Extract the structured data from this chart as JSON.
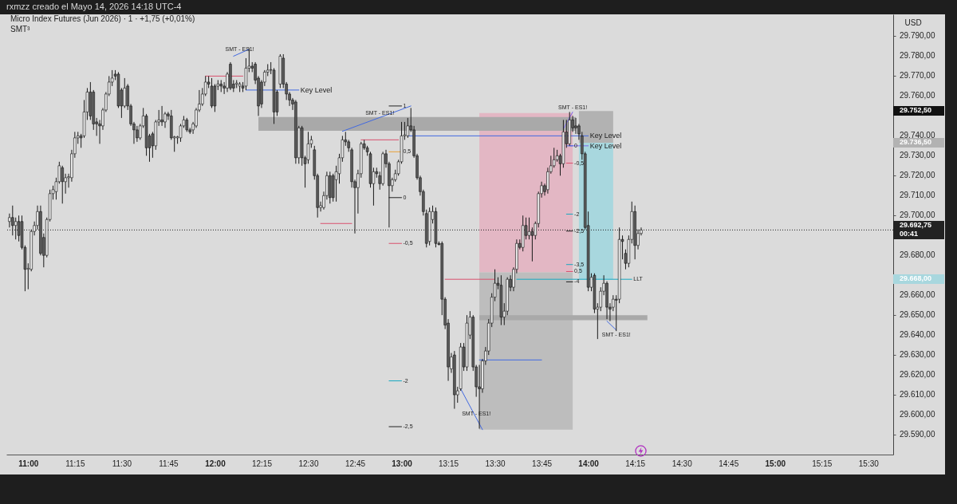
{
  "chart_data": {
    "type": "candlestick",
    "title": "rxmzz creado el Mayo 14, 2026 14:18 UTC-4",
    "subtitle": "Micro Index Futures (Jun 2026) · 1 · +1,75 (+0,01%)",
    "ylabel": "USD",
    "xlim": [
      "2026-05-14T10:53",
      "2026-05-14T15:38"
    ],
    "ylim": [
      29580,
      29801
    ],
    "xticks": [
      {
        "value": "2026-05-14T11:00",
        "label": "11:00"
      },
      {
        "value": "2026-05-14T11:15",
        "label": "11:15"
      },
      {
        "value": "2026-05-14T11:30",
        "label": "11:30"
      },
      {
        "value": "2026-05-14T11:45",
        "label": "11:45"
      },
      {
        "value": "2026-05-14T12:00",
        "label": "12:00"
      },
      {
        "value": "2026-05-14T12:15",
        "label": "12:15"
      },
      {
        "value": "2026-05-14T12:30",
        "label": "12:30"
      },
      {
        "value": "2026-05-14T12:45",
        "label": "12:45"
      },
      {
        "value": "2026-05-14T13:00",
        "label": "13:00"
      },
      {
        "value": "2026-05-14T13:15",
        "label": "13:15"
      },
      {
        "value": "2026-05-14T13:30",
        "label": "13:30"
      },
      {
        "value": "2026-05-14T13:45",
        "label": "13:45"
      },
      {
        "value": "2026-05-14T14:00",
        "label": "14:00"
      },
      {
        "value": "2026-05-14T14:15",
        "label": "14:15"
      },
      {
        "value": "2026-05-14T14:30",
        "label": "14:30"
      },
      {
        "value": "2026-05-14T14:45",
        "label": "14:45"
      },
      {
        "value": "2026-05-14T15:00",
        "label": "15:00"
      },
      {
        "value": "2026-05-14T15:15",
        "label": "15:15"
      },
      {
        "value": "2026-05-14T15:30",
        "label": "15:30"
      }
    ],
    "yticks": [
      {
        "value": 29590,
        "label": "29.590,00"
      },
      {
        "value": 29600,
        "label": "29.600,00"
      },
      {
        "value": 29610,
        "label": "29.610,00"
      },
      {
        "value": 29620,
        "label": "29.620,00"
      },
      {
        "value": 29630,
        "label": "29.630,00"
      },
      {
        "value": 29640,
        "label": "29.640,00"
      },
      {
        "value": 29650,
        "label": "29.650,00"
      },
      {
        "value": 29660,
        "label": "29.660,00"
      },
      {
        "value": 29668,
        "label": "29.668,00"
      },
      {
        "value": 29680,
        "label": "29.680,00"
      },
      {
        "value": 29700,
        "label": "29.700,00"
      },
      {
        "value": 29710,
        "label": "29.710,00"
      },
      {
        "value": 29720,
        "label": "29.720,00"
      },
      {
        "value": 29730,
        "label": "29.730,00"
      },
      {
        "value": 29736.5,
        "label": "29.736,50"
      },
      {
        "value": 29740,
        "label": "29.740,00"
      },
      {
        "value": 29752.5,
        "label": "29.752,50"
      },
      {
        "value": 29760,
        "label": "29.760,00"
      },
      {
        "value": 29770,
        "label": "29.770,00"
      },
      {
        "value": 29780,
        "label": "29.780,00"
      },
      {
        "value": 29790,
        "label": "29.790,00"
      }
    ],
    "x": [
      "2026-05-14T10:54",
      "2026-05-14T10:55",
      "2026-05-14T10:56",
      "2026-05-14T10:57",
      "2026-05-14T10:58",
      "2026-05-14T10:59",
      "2026-05-14T11:00",
      "2026-05-14T11:01",
      "2026-05-14T11:02",
      "2026-05-14T11:03",
      "2026-05-14T11:04",
      "2026-05-14T11:05",
      "2026-05-14T11:06",
      "2026-05-14T11:07",
      "2026-05-14T11:08",
      "2026-05-14T11:09",
      "2026-05-14T11:10",
      "2026-05-14T11:11",
      "2026-05-14T11:12",
      "2026-05-14T11:13",
      "2026-05-14T11:14",
      "2026-05-14T11:15",
      "2026-05-14T11:16",
      "2026-05-14T11:17",
      "2026-05-14T11:18",
      "2026-05-14T11:19",
      "2026-05-14T11:20",
      "2026-05-14T11:21",
      "2026-05-14T11:22",
      "2026-05-14T11:23",
      "2026-05-14T11:24",
      "2026-05-14T11:25",
      "2026-05-14T11:26",
      "2026-05-14T11:27",
      "2026-05-14T11:28",
      "2026-05-14T11:29",
      "2026-05-14T11:30",
      "2026-05-14T11:31",
      "2026-05-14T11:32",
      "2026-05-14T11:33",
      "2026-05-14T11:34",
      "2026-05-14T11:35",
      "2026-05-14T11:36",
      "2026-05-14T11:37",
      "2026-05-14T11:38",
      "2026-05-14T11:39",
      "2026-05-14T11:40",
      "2026-05-14T11:41",
      "2026-05-14T11:42",
      "2026-05-14T11:43",
      "2026-05-14T11:44",
      "2026-05-14T11:45",
      "2026-05-14T11:46",
      "2026-05-14T11:47",
      "2026-05-14T11:48",
      "2026-05-14T11:49",
      "2026-05-14T11:50",
      "2026-05-14T11:51",
      "2026-05-14T11:52",
      "2026-05-14T11:53",
      "2026-05-14T11:54",
      "2026-05-14T11:55",
      "2026-05-14T11:56",
      "2026-05-14T11:57",
      "2026-05-14T11:58",
      "2026-05-14T11:59",
      "2026-05-14T12:00",
      "2026-05-14T12:01",
      "2026-05-14T12:02",
      "2026-05-14T12:03",
      "2026-05-14T12:04",
      "2026-05-14T12:05",
      "2026-05-14T12:06",
      "2026-05-14T12:07",
      "2026-05-14T12:08",
      "2026-05-14T12:09",
      "2026-05-14T12:10",
      "2026-05-14T12:11",
      "2026-05-14T12:12",
      "2026-05-14T12:13",
      "2026-05-14T12:14",
      "2026-05-14T12:15",
      "2026-05-14T12:16",
      "2026-05-14T12:17",
      "2026-05-14T12:18",
      "2026-05-14T12:19",
      "2026-05-14T12:20",
      "2026-05-14T12:21",
      "2026-05-14T12:22",
      "2026-05-14T12:23",
      "2026-05-14T12:24",
      "2026-05-14T12:25",
      "2026-05-14T12:26",
      "2026-05-14T12:27",
      "2026-05-14T12:28",
      "2026-05-14T12:29",
      "2026-05-14T12:30",
      "2026-05-14T12:31",
      "2026-05-14T12:32",
      "2026-05-14T12:33",
      "2026-05-14T12:34",
      "2026-05-14T12:35",
      "2026-05-14T12:36",
      "2026-05-14T12:37",
      "2026-05-14T12:38",
      "2026-05-14T12:39",
      "2026-05-14T12:40",
      "2026-05-14T12:41",
      "2026-05-14T12:42",
      "2026-05-14T12:43",
      "2026-05-14T12:44",
      "2026-05-14T12:45",
      "2026-05-14T12:46",
      "2026-05-14T12:47",
      "2026-05-14T12:48",
      "2026-05-14T12:49",
      "2026-05-14T12:50",
      "2026-05-14T12:51",
      "2026-05-14T12:52",
      "2026-05-14T12:53",
      "2026-05-14T12:54",
      "2026-05-14T12:55",
      "2026-05-14T12:56",
      "2026-05-14T12:57",
      "2026-05-14T12:58",
      "2026-05-14T12:59",
      "2026-05-14T13:00",
      "2026-05-14T13:01",
      "2026-05-14T13:02",
      "2026-05-14T13:03",
      "2026-05-14T13:04",
      "2026-05-14T13:05",
      "2026-05-14T13:06",
      "2026-05-14T13:07",
      "2026-05-14T13:08",
      "2026-05-14T13:09",
      "2026-05-14T13:10",
      "2026-05-14T13:11",
      "2026-05-14T13:12",
      "2026-05-14T13:13",
      "2026-05-14T13:14",
      "2026-05-14T13:15",
      "2026-05-14T13:16",
      "2026-05-14T13:17",
      "2026-05-14T13:18",
      "2026-05-14T13:19",
      "2026-05-14T13:20",
      "2026-05-14T13:21",
      "2026-05-14T13:22",
      "2026-05-14T13:23",
      "2026-05-14T13:24",
      "2026-05-14T13:25",
      "2026-05-14T13:26",
      "2026-05-14T13:27",
      "2026-05-14T13:28",
      "2026-05-14T13:29",
      "2026-05-14T13:30",
      "2026-05-14T13:31",
      "2026-05-14T13:32",
      "2026-05-14T13:33",
      "2026-05-14T13:34",
      "2026-05-14T13:35",
      "2026-05-14T13:36",
      "2026-05-14T13:37",
      "2026-05-14T13:38",
      "2026-05-14T13:39",
      "2026-05-14T13:40",
      "2026-05-14T13:41",
      "2026-05-14T13:42",
      "2026-05-14T13:43",
      "2026-05-14T13:44",
      "2026-05-14T13:45",
      "2026-05-14T13:46",
      "2026-05-14T13:47",
      "2026-05-14T13:48",
      "2026-05-14T13:49",
      "2026-05-14T13:50",
      "2026-05-14T13:51",
      "2026-05-14T13:52",
      "2026-05-14T13:53",
      "2026-05-14T13:54",
      "2026-05-14T13:55",
      "2026-05-14T13:56",
      "2026-05-14T13:57",
      "2026-05-14T13:58",
      "2026-05-14T13:59",
      "2026-05-14T14:00",
      "2026-05-14T14:01",
      "2026-05-14T14:02",
      "2026-05-14T14:03",
      "2026-05-14T14:04",
      "2026-05-14T14:05",
      "2026-05-14T14:06",
      "2026-05-14T14:07",
      "2026-05-14T14:08",
      "2026-05-14T14:09",
      "2026-05-14T14:10",
      "2026-05-14T14:11",
      "2026-05-14T14:12",
      "2026-05-14T14:13",
      "2026-05-14T14:14",
      "2026-05-14T14:15",
      "2026-05-14T14:16",
      "2026-05-14T14:17"
    ],
    "ohlc": [
      [
        29697,
        29701,
        29694,
        29699
      ],
      [
        29699,
        29705,
        29690,
        29695
      ],
      [
        29695,
        29699,
        29688,
        29697
      ],
      [
        29697,
        29700,
        29687,
        29690
      ],
      [
        29697,
        29700,
        29683,
        29684
      ],
      [
        29684,
        29685,
        29662,
        29673
      ],
      [
        29673,
        29676,
        29663,
        29673.5
      ],
      [
        29673,
        29693,
        29672,
        29692
      ],
      [
        29692,
        29697,
        29690,
        29695
      ],
      [
        29695,
        29705,
        29693,
        29702
      ],
      [
        29702,
        29705,
        29680,
        29681
      ],
      [
        29689,
        29691,
        29674,
        29680
      ],
      [
        29680,
        29699,
        29679,
        29698
      ],
      [
        29698,
        29713,
        29697,
        29711
      ],
      [
        29711,
        29715,
        29708,
        29713
      ],
      [
        29712,
        29719,
        29708,
        29717
      ],
      [
        29717,
        29727,
        29716,
        29725
      ],
      [
        29724,
        29725,
        29706,
        29717
      ],
      [
        29717,
        29721,
        29711,
        29719
      ],
      [
        29719,
        29721,
        29714,
        29719.5
      ],
      [
        29719,
        29733,
        29717,
        29731
      ],
      [
        29731,
        29742,
        29729,
        29739
      ],
      [
        29739,
        29742,
        29736,
        29740
      ],
      [
        29740,
        29741,
        29734,
        29739
      ],
      [
        29740,
        29758,
        29739,
        29752
      ],
      [
        29752,
        29764,
        29748,
        29762
      ],
      [
        29762,
        29767,
        29748,
        29750
      ],
      [
        29762,
        29763,
        29743,
        29746
      ],
      [
        29747,
        29749,
        29740,
        29746
      ],
      [
        29746,
        29748,
        29736,
        29745
      ],
      [
        29745,
        29754,
        29743,
        29753
      ],
      [
        29753,
        29762,
        29752,
        29761
      ],
      [
        29761,
        29770,
        29760,
        29767
      ],
      [
        29767,
        29773,
        29765,
        29769
      ],
      [
        29771,
        29773,
        29768,
        29770
      ],
      [
        29771,
        29772,
        29754,
        29755
      ],
      [
        29763,
        29764,
        29749,
        29755
      ],
      [
        29755,
        29769,
        29754,
        29764
      ],
      [
        29765,
        29766,
        29753,
        29755
      ],
      [
        29755,
        29756,
        29745,
        29746
      ],
      [
        29746,
        29747,
        29736,
        29743
      ],
      [
        29743,
        29745,
        29737,
        29739
      ],
      [
        29739,
        29746,
        29738,
        29745
      ],
      [
        29745,
        29754,
        29744,
        29750
      ],
      [
        29750,
        29751,
        29730,
        29734
      ],
      [
        29740,
        29741,
        29727,
        29734
      ],
      [
        29741,
        29742,
        29729,
        29735
      ],
      [
        29735,
        29748,
        29733,
        29747
      ],
      [
        29747,
        29753,
        29745,
        29748
      ],
      [
        29748,
        29755,
        29745,
        29747
      ],
      [
        29747,
        29752,
        29744,
        29751
      ],
      [
        29751,
        29752,
        29748,
        29750
      ],
      [
        29750,
        29753,
        29738,
        29739
      ],
      [
        29739,
        29740,
        29732,
        29739.5
      ],
      [
        29739,
        29740,
        29736,
        29739.5
      ],
      [
        29739,
        29746,
        29737,
        29745
      ],
      [
        29745,
        29750,
        29744,
        29748
      ],
      [
        29748,
        29749,
        29742,
        29743
      ],
      [
        29743,
        29744,
        29741,
        29742
      ],
      [
        29743,
        29747,
        29741,
        29746
      ],
      [
        29745,
        29754,
        29744,
        29753
      ],
      [
        29753,
        29763,
        29752,
        29756
      ],
      [
        29756,
        29764,
        29755,
        29761
      ],
      [
        29761,
        29770,
        29760,
        29767
      ],
      [
        29767,
        29770,
        29764,
        29766
      ],
      [
        29765,
        29769,
        29754,
        29755
      ],
      [
        29765,
        29766,
        29752,
        29755
      ],
      [
        29765,
        29768,
        29763,
        29766
      ],
      [
        29766,
        29768,
        29762,
        29765
      ],
      [
        29765,
        29767,
        29761,
        29764
      ],
      [
        29764,
        29772,
        29762,
        29771
      ],
      [
        29776,
        29777,
        29763,
        29764
      ],
      [
        29766,
        29768,
        29762,
        29764
      ],
      [
        29766,
        29768,
        29764,
        29766.5
      ],
      [
        29765,
        29767,
        29762,
        29766
      ],
      [
        29765,
        29767,
        29762,
        29764
      ],
      [
        29765,
        29779,
        29763,
        29774
      ],
      [
        29774,
        29784,
        29772,
        29775
      ],
      [
        29775,
        29777,
        29772,
        29774
      ],
      [
        29776,
        29777,
        29766,
        29768
      ],
      [
        29769,
        29770,
        29750,
        29755
      ],
      [
        29767,
        29768,
        29754,
        29756
      ],
      [
        29767,
        29773,
        29765,
        29772
      ],
      [
        29772,
        29776,
        29770,
        29773
      ],
      [
        29773,
        29777,
        29771,
        29773.25
      ],
      [
        29773,
        29774,
        29746,
        29752
      ],
      [
        29762,
        29763,
        29750,
        29752
      ],
      [
        29766,
        29781,
        29764,
        29780
      ],
      [
        29779,
        29781,
        29764,
        29766
      ],
      [
        29766,
        29767,
        29758,
        29761
      ],
      [
        29761,
        29762,
        29755,
        29758
      ],
      [
        29758,
        29759,
        29753,
        29756
      ],
      [
        29757,
        29758,
        29726,
        29729
      ],
      [
        29729,
        29745,
        29726,
        29744
      ],
      [
        29744,
        29745,
        29725,
        29729
      ],
      [
        29729,
        29730,
        29714,
        29726
      ],
      [
        29728,
        29742,
        29726,
        29736
      ],
      [
        29736,
        29740,
        29734,
        29738
      ],
      [
        29733,
        29735,
        29718,
        29720
      ],
      [
        29720,
        29721,
        29699,
        29704
      ],
      [
        29704,
        29707,
        29702,
        29705
      ],
      [
        29704,
        29712,
        29703,
        29710
      ],
      [
        29710,
        29722,
        29708,
        29720
      ],
      [
        29720,
        29722,
        29706,
        29709
      ],
      [
        29720,
        29721,
        29707,
        29709
      ],
      [
        29718,
        29725,
        29707,
        29722
      ],
      [
        29721,
        29731,
        29716,
        29729
      ],
      [
        29729,
        29740,
        29727,
        29738
      ],
      [
        29738,
        29742,
        29735,
        29737
      ],
      [
        29737,
        29738,
        29732,
        29734
      ],
      [
        29733,
        29734,
        29714,
        29717
      ],
      [
        29717,
        29718,
        29691,
        29714
      ],
      [
        29714,
        29723,
        29701,
        29721
      ],
      [
        29721,
        29737,
        29719,
        29736
      ],
      [
        29736,
        29738,
        29733,
        29734
      ],
      [
        29734,
        29735,
        29730,
        29732
      ],
      [
        29731,
        29732,
        29714,
        29716
      ],
      [
        29716,
        29724,
        29705,
        29722
      ],
      [
        29722,
        29724,
        29719,
        29721
      ],
      [
        29720,
        29722,
        29713,
        29716
      ],
      [
        29716,
        29732,
        29715,
        29731
      ],
      [
        29731,
        29733,
        29724,
        29726
      ],
      [
        29726,
        29727,
        29694,
        29715
      ],
      [
        29715,
        29719,
        29712,
        29718
      ],
      [
        29718,
        29723,
        29717,
        29721
      ],
      [
        29721,
        29728,
        29720,
        29727
      ],
      [
        29727,
        29747,
        29726,
        29740
      ],
      [
        29740,
        29747,
        29738,
        29740.5
      ],
      [
        29740,
        29749,
        29739,
        29745
      ],
      [
        29745,
        29754,
        29742,
        29743
      ],
      [
        29743,
        29745,
        29729,
        29730
      ],
      [
        29730,
        29731,
        29718,
        29719
      ],
      [
        29719,
        29720,
        29710,
        29712
      ],
      [
        29712,
        29713,
        29700,
        29702
      ],
      [
        29701,
        29703,
        29684,
        29686
      ],
      [
        29687,
        29704,
        29685,
        29702
      ],
      [
        29698,
        29705,
        29696,
        29702
      ],
      [
        29702,
        29704,
        29684,
        29686
      ],
      [
        29686,
        29687,
        29685,
        29685.5
      ],
      [
        29686,
        29687,
        29650,
        29658
      ],
      [
        29658,
        29659,
        29643,
        29645
      ],
      [
        29646,
        29648,
        29617,
        29624
      ],
      [
        29623,
        29631,
        29621,
        29629
      ],
      [
        29630,
        29632,
        29603,
        29610
      ],
      [
        29610,
        29614,
        29606,
        29612
      ],
      [
        29613,
        29636,
        29612,
        29634
      ],
      [
        29634,
        29636,
        29622,
        29624
      ],
      [
        29624,
        29650,
        29622,
        29646
      ],
      [
        29640,
        29652,
        29638,
        29649
      ],
      [
        29649,
        29650,
        29622,
        29624
      ],
      [
        29624,
        29625,
        29609,
        29614
      ],
      [
        29614,
        29625,
        29593,
        29613
      ],
      [
        29613,
        29628,
        29611,
        29627
      ],
      [
        29627,
        29634,
        29625,
        29632
      ],
      [
        29632,
        29648,
        29630,
        29646
      ],
      [
        29646,
        29661,
        29644,
        29659
      ],
      [
        29659,
        29673,
        29657,
        29666
      ],
      [
        29666,
        29669,
        29663,
        29665
      ],
      [
        29665,
        29670,
        29645,
        29649
      ],
      [
        29649,
        29656,
        29645,
        29652
      ],
      [
        29652,
        29669,
        29650,
        29668
      ],
      [
        29668,
        29670,
        29662,
        29664
      ],
      [
        29664,
        29674,
        29662,
        29673
      ],
      [
        29673,
        29688,
        29671,
        29686
      ],
      [
        29686,
        29688,
        29683,
        29684
      ],
      [
        29684,
        29700,
        29682,
        29695
      ],
      [
        29695,
        29699,
        29688,
        29690
      ],
      [
        29690,
        29699,
        29688,
        29692
      ],
      [
        29692,
        29694,
        29677,
        29690
      ],
      [
        29690,
        29697,
        29688,
        29696
      ],
      [
        29696,
        29712,
        29694,
        29711
      ],
      [
        29711,
        29717,
        29709,
        29715
      ],
      [
        29715,
        29716,
        29710,
        29712
      ],
      [
        29713,
        29724,
        29711,
        29722
      ],
      [
        29722,
        29730,
        29721,
        29725
      ],
      [
        29725,
        29734,
        29724,
        29728
      ],
      [
        29728,
        29733,
        29727,
        29730
      ],
      [
        29730,
        29731,
        29720,
        29726
      ],
      [
        29726,
        29748,
        29724,
        29742
      ],
      [
        29742,
        29748,
        29734,
        29736
      ],
      [
        29736,
        29752,
        29735,
        29748
      ],
      [
        29748,
        29750,
        29742,
        29744
      ],
      [
        29745,
        29749,
        29741,
        29744
      ],
      [
        29745,
        29746,
        29738,
        29741
      ],
      [
        29740,
        29742,
        29728,
        29731
      ],
      [
        29731,
        29732,
        29693,
        29694
      ],
      [
        29695,
        29702,
        29662,
        29664
      ],
      [
        29664,
        29671,
        29662,
        29669
      ],
      [
        29670,
        29671,
        29651,
        29653
      ],
      [
        29653,
        29656,
        29638,
        29654
      ],
      [
        29654,
        29664,
        29652,
        29662
      ],
      [
        29662,
        29670,
        29660,
        29666
      ],
      [
        29666,
        29667,
        29648,
        29654
      ],
      [
        29654,
        29656,
        29647,
        29653
      ],
      [
        29654,
        29660,
        29652,
        29658
      ],
      [
        29658,
        29660,
        29642,
        29657.5
      ],
      [
        29658,
        29694,
        29656,
        29688
      ],
      [
        29688,
        29690,
        29678,
        29687
      ],
      [
        29681,
        29683,
        29673,
        29676
      ],
      [
        29676,
        29690,
        29674,
        29688
      ],
      [
        29688,
        29707,
        29686,
        29702
      ],
      [
        29702,
        29705,
        29678,
        29685
      ],
      [
        29685,
        29693,
        29683,
        29691
      ],
      [
        29691,
        29694,
        29690,
        29692.75
      ]
    ],
    "series": [
      {
        "type": "line",
        "color": "#e3b7c4",
        "x": [
          "2026-05-14T13:25",
          "2026-05-14T13:55"
        ],
        "values": [
          null,
          null
        ],
        "lower": [
          29671.5,
          29671.5
        ],
        "upper": [
          29751.5,
          29751.5
        ]
      },
      {
        "type": "line",
        "color": "#bdbdbd",
        "x": [
          "2026-05-14T13:25",
          "2026-05-14T13:55"
        ],
        "values": [
          null,
          null
        ],
        "lower": [
          29592.5,
          29592.5
        ],
        "upper": [
          29671.5,
          29671.5
        ]
      },
      {
        "type": "line",
        "color": "#a9a9a9",
        "x": [
          "2026-05-14T12:14",
          "2026-05-14T13:56"
        ],
        "values": [
          null,
          null
        ],
        "lower": [
          29742.5,
          29742.5
        ],
        "upper": [
          29749.5,
          29749.5
        ]
      },
      {
        "type": "line",
        "color": "#b2b2b2",
        "x": [
          "2026-05-14T13:57",
          "2026-05-14T14:08"
        ],
        "values": [
          null,
          null
        ],
        "lower": [
          29736.5,
          29736.5
        ],
        "upper": [
          29752.5,
          29752.5
        ]
      },
      {
        "type": "line",
        "color": "#a8d7de",
        "x": [
          "2026-05-14T13:57",
          "2026-05-14T14:08"
        ],
        "values": [
          null,
          null
        ],
        "lower": [
          29668,
          29668
        ],
        "upper": [
          29736.5,
          29736.5
        ]
      },
      {
        "type": "line",
        "color": "#a9a9a9",
        "x": [
          "2026-05-14T13:25",
          "2026-05-14T14:19"
        ],
        "values": [
          null,
          null
        ],
        "lower": [
          29647.5,
          29647.5
        ],
        "upper": [
          29650,
          29650
        ]
      },
      {
        "type": "line",
        "color": "#4169e1",
        "x": [
          "2026-05-14T12:10",
          "2026-05-14T12:27"
        ],
        "values": [
          29763,
          29763
        ]
      },
      {
        "type": "line",
        "color": "#4169e1",
        "x": [
          "2026-05-14T13:02",
          "2026-05-14T14:00"
        ],
        "values": [
          29740,
          29740
        ]
      },
      {
        "type": "line",
        "color": "#7b68ee",
        "x": [
          "2026-05-14T13:54",
          "2026-05-14T14:00"
        ],
        "values": [
          29735,
          29735
        ]
      },
      {
        "type": "line",
        "color": "#17a9c0",
        "x": [
          "2026-05-14T13:37",
          "2026-05-14T14:14"
        ],
        "values": [
          29668,
          29668
        ]
      },
      {
        "type": "line",
        "color": "#d9506d",
        "x": [
          "2026-05-14T11:57",
          "2026-05-14T12:09"
        ],
        "values": [
          29770,
          29770
        ]
      },
      {
        "type": "line",
        "color": "#d9506d",
        "x": [
          "2026-05-14T12:47",
          "2026-05-14T12:59"
        ],
        "values": [
          29738,
          29738
        ]
      },
      {
        "type": "line",
        "color": "#d9506d",
        "x": [
          "2026-05-14T12:34",
          "2026-05-14T12:44"
        ],
        "values": [
          29696,
          29696
        ]
      },
      {
        "type": "line",
        "color": "#d9506d",
        "x": [
          "2026-05-14T13:14",
          "2026-05-14T13:30"
        ],
        "values": [
          29668,
          29668
        ]
      },
      {
        "type": "line",
        "color": "#4169e1",
        "x": [
          "2026-05-14T13:25",
          "2026-05-14T13:45"
        ],
        "values": [
          29627.5,
          29627.5
        ]
      },
      {
        "type": "line",
        "color": "#4169e1",
        "x": [
          "2026-05-14T12:06",
          "2026-05-14T12:11"
        ],
        "values": [
          29780,
          29783.5
        ]
      },
      {
        "type": "line",
        "color": "#4169e1",
        "x": [
          "2026-05-14T12:41",
          "2026-05-14T13:03"
        ],
        "values": [
          29742.3,
          29755
        ]
      },
      {
        "type": "line",
        "color": "#7b68ee",
        "x": [
          "2026-05-14T13:52",
          "2026-05-14T13:55"
        ],
        "values": [
          29743.5,
          29752
        ]
      },
      {
        "type": "line",
        "color": "#4169e1",
        "x": [
          "2026-05-14T13:19",
          "2026-05-14T13:26"
        ],
        "values": [
          29613,
          29592.5
        ]
      },
      {
        "type": "line",
        "color": "#4169e1",
        "x": [
          "2026-05-14T14:06",
          "2026-05-14T14:09"
        ],
        "values": [
          29647,
          29642.5
        ]
      },
      {
        "type": "line",
        "color": "#222222",
        "x": [
          "2026-05-14T12:56",
          "2026-05-14T13:00"
        ],
        "values": [
          29755,
          29755
        ]
      },
      {
        "type": "line",
        "color": "#e8a23a",
        "x": [
          "2026-05-14T12:56",
          "2026-05-14T13:00"
        ],
        "values": [
          29732,
          29732
        ]
      },
      {
        "type": "line",
        "color": "#222222",
        "x": [
          "2026-05-14T12:56",
          "2026-05-14T13:00"
        ],
        "values": [
          29709,
          29709
        ]
      },
      {
        "type": "line",
        "color": "#d9506d",
        "x": [
          "2026-05-14T12:56",
          "2026-05-14T13:00"
        ],
        "values": [
          29686,
          29686
        ]
      },
      {
        "type": "line",
        "color": "#17a9c0",
        "x": [
          "2026-05-14T12:56",
          "2026-05-14T13:00"
        ],
        "values": [
          29617,
          29617
        ]
      },
      {
        "type": "line",
        "color": "#222222",
        "x": [
          "2026-05-14T12:56",
          "2026-05-14T13:00"
        ],
        "values": [
          29594,
          29594
        ]
      },
      {
        "type": "line",
        "color": "#4169e1",
        "x": [
          "2026-05-14T13:53",
          "2026-05-14T13:55"
        ],
        "values": [
          29735,
          29735
        ]
      },
      {
        "type": "line",
        "color": "#d9506d",
        "x": [
          "2026-05-14T13:53",
          "2026-05-14T13:55"
        ],
        "values": [
          29726.3,
          29726.3
        ]
      },
      {
        "type": "line",
        "color": "#17a9c0",
        "x": [
          "2026-05-14T13:53",
          "2026-05-14T13:55"
        ],
        "values": [
          29700.7,
          29700.7
        ]
      },
      {
        "type": "line",
        "color": "#222222",
        "x": [
          "2026-05-14T13:53",
          "2026-05-14T13:55"
        ],
        "values": [
          29692.2,
          29692.2
        ]
      },
      {
        "type": "line",
        "color": "#17a9c0",
        "x": [
          "2026-05-14T13:53",
          "2026-05-14T13:55"
        ],
        "values": [
          29675.4,
          29675.4
        ]
      },
      {
        "type": "line",
        "color": "#d9506d",
        "x": [
          "2026-05-14T13:53",
          "2026-05-14T13:55"
        ],
        "values": [
          29671.9,
          29671.9
        ]
      },
      {
        "type": "line",
        "color": "#222222",
        "x": [
          "2026-05-14T13:53",
          "2026-05-14T13:55"
        ],
        "values": [
          29666.7,
          29666.7
        ]
      }
    ],
    "ref_lines": [
      {
        "axis": "y",
        "value": 29692.75,
        "label": "29.692,75\n00:41",
        "color": "#222222",
        "line_style": "dotted"
      }
    ],
    "annotations": [
      "SMT³",
      {
        "text": "Key Level",
        "x": "2026-05-14T12:27",
        "y": 29763
      },
      {
        "text": "Key Level",
        "x": "2026-05-14T14:00",
        "y": 29740
      },
      {
        "text": "Key Level",
        "x": "2026-05-14T14:00",
        "y": 29735
      },
      {
        "text": "LLT",
        "x": "2026-05-14T14:14",
        "y": 29668
      },
      {
        "text": "SMT - ES1!",
        "x": "2026-05-14T12:08",
        "y": 29781.4
      },
      {
        "text": "SMT - ES1!",
        "x": "2026-05-14T12:53",
        "y": 29749.2
      },
      {
        "text": "SMT - ES1!",
        "x": "2026-05-14T13:55",
        "y": 29752
      },
      {
        "text": "SMT - ES1!",
        "x": "2026-05-14T13:24",
        "y": 29598.4
      },
      {
        "text": "SMT - ES1!",
        "x": "2026-05-14T14:09",
        "y": 29642.5
      },
      {
        "text": "1",
        "x": "2026-05-14T13:00",
        "y": 29755
      },
      {
        "text": "0,5",
        "x": "2026-05-14T13:00",
        "y": 29732
      },
      {
        "text": "0",
        "x": "2026-05-14T13:00",
        "y": 29709
      },
      {
        "text": "-0,5",
        "x": "2026-05-14T13:00",
        "y": 29686
      },
      {
        "text": "-2",
        "x": "2026-05-14T13:00",
        "y": 29617
      },
      {
        "text": "-2,5",
        "x": "2026-05-14T13:00",
        "y": 29594
      },
      {
        "text": "0",
        "x": "2026-05-14T13:55",
        "y": 29735
      },
      {
        "text": "-0,5",
        "x": "2026-05-14T13:55",
        "y": 29726.3
      },
      {
        "text": "-2",
        "x": "2026-05-14T13:55",
        "y": 29700.7
      },
      {
        "text": "-2,5",
        "x": "2026-05-14T13:55",
        "y": 29692.2
      },
      {
        "text": "-3,5",
        "x": "2026-05-14T13:55",
        "y": 29675.4
      },
      {
        "text": "0,5",
        "x": "2026-05-14T13:55",
        "y": 29671.9
      },
      {
        "text": "-4",
        "x": "2026-05-14T13:55",
        "y": 29666.7
      }
    ]
  }
}
